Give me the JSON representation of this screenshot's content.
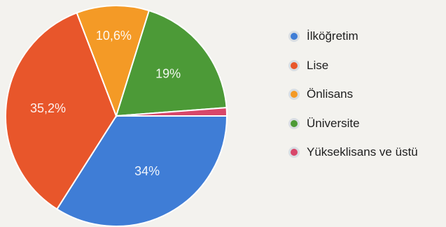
{
  "chart_data": {
    "type": "pie",
    "title": "",
    "categories": [
      "İlköğretim",
      "Lise",
      "Önlisans",
      "Üniversite",
      "Yükseklisans ve üstü"
    ],
    "values": [
      34,
      35.2,
      10.6,
      19,
      1.2
    ],
    "labels": [
      "34%",
      "35,2%",
      "10,6%",
      "19%",
      ""
    ],
    "colors": [
      "#3f7dd6",
      "#e8562b",
      "#f49a26",
      "#4c9a37",
      "#d8476a"
    ],
    "legend_position": "right"
  }
}
